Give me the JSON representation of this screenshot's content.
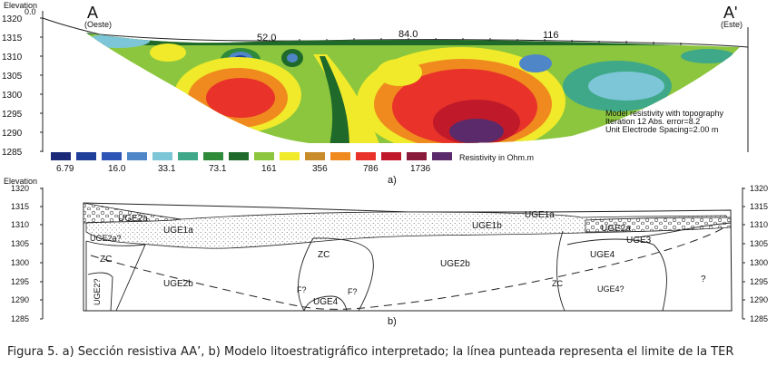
{
  "panel_a": {
    "elevation_label": "Elevation",
    "origin_label": "0.0",
    "left_end": "A",
    "left_dir": "(Oeste)",
    "right_end": "A'",
    "right_dir": "(Este)",
    "distance_ticks": [
      "52.0",
      "84.0",
      "116"
    ],
    "y_ticks": [
      "1320",
      "1315",
      "1310",
      "1305",
      "1300",
      "1295",
      "1290",
      "1285"
    ],
    "model_notes": [
      "Model resistivity with topography",
      "Iteration 12 Abs. error=8.2",
      "Unit Electrode Spacing=2.00 m"
    ],
    "scale_values": [
      "6.79",
      "16.0",
      "33.1",
      "73.1",
      "161",
      "356",
      "786",
      "1736"
    ],
    "scale_unit": "Resistivity in Ohm.m",
    "scale_colors": [
      "#1a2a78",
      "#1f3e9a",
      "#2c55b6",
      "#4f86c8",
      "#7cc6d8",
      "#3fa888",
      "#2f8a3a",
      "#1f6a2a",
      "#8cc63e",
      "#f0ea2a",
      "#c98c2a",
      "#f08a1e",
      "#e8322a",
      "#c01a2a",
      "#8a1a3a",
      "#5a2a6a"
    ],
    "panel_label": "a)"
  },
  "panel_b": {
    "elevation_label": "Elevation",
    "y_ticks": [
      "1320",
      "1315",
      "1310",
      "1305",
      "1300",
      "1295",
      "1290",
      "1285"
    ],
    "units": {
      "uge2a_left": "UGE2a",
      "uge1a_left": "UGE1a",
      "uge2a_q": "UGE2a?",
      "zc_left": "ZC",
      "uge2q": "UGE2?",
      "uge2b_left": "UGE2b",
      "zc_center": "ZC",
      "f1": "F?",
      "f2": "F?",
      "uge4_center": "UGE4",
      "uge1b": "UGE1b",
      "uge1a_right": "UGE1a",
      "uge2b_center": "UGE2b",
      "uge2a_right": "UGE2a",
      "uge3": "UGE3",
      "uge4_right": "UGE4",
      "zc_right": "ZC",
      "uge4q": "UGE4?",
      "unknown": "?"
    },
    "panel_label": "b)"
  },
  "caption": "Figura 5. a) Sección resistiva AA’, b) Modelo litoestratigráfico interpretado; la línea punteada representa el limite de la TER"
}
